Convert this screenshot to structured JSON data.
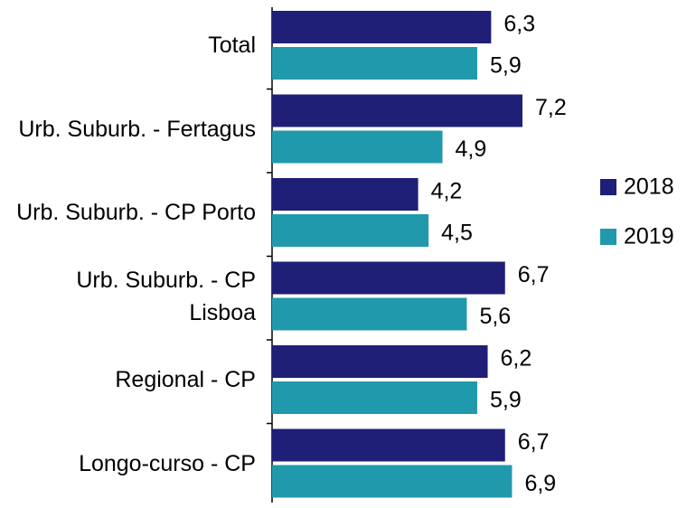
{
  "chart_data": {
    "type": "bar",
    "orientation": "horizontal",
    "categories": [
      "Total",
      "Urb. Suburb. - Fertagus",
      "Urb. Suburb. - CP Porto",
      "Urb. Suburb. - CP Lisboa",
      "Regional - CP",
      "Longo-curso - CP"
    ],
    "series": [
      {
        "name": "2018",
        "color": "#1f1f77",
        "values": [
          6.3,
          7.2,
          4.2,
          6.7,
          6.2,
          6.7
        ],
        "value_labels": [
          "6,3",
          "7,2",
          "4,2",
          "6,7",
          "6,2",
          "6,7"
        ]
      },
      {
        "name": "2019",
        "color": "#2199ad",
        "values": [
          5.9,
          4.9,
          4.5,
          5.6,
          5.9,
          6.9
        ],
        "value_labels": [
          "5,9",
          "4,9",
          "4,5",
          "5,6",
          "5,9",
          "6,9"
        ]
      }
    ],
    "legend": "right"
  }
}
